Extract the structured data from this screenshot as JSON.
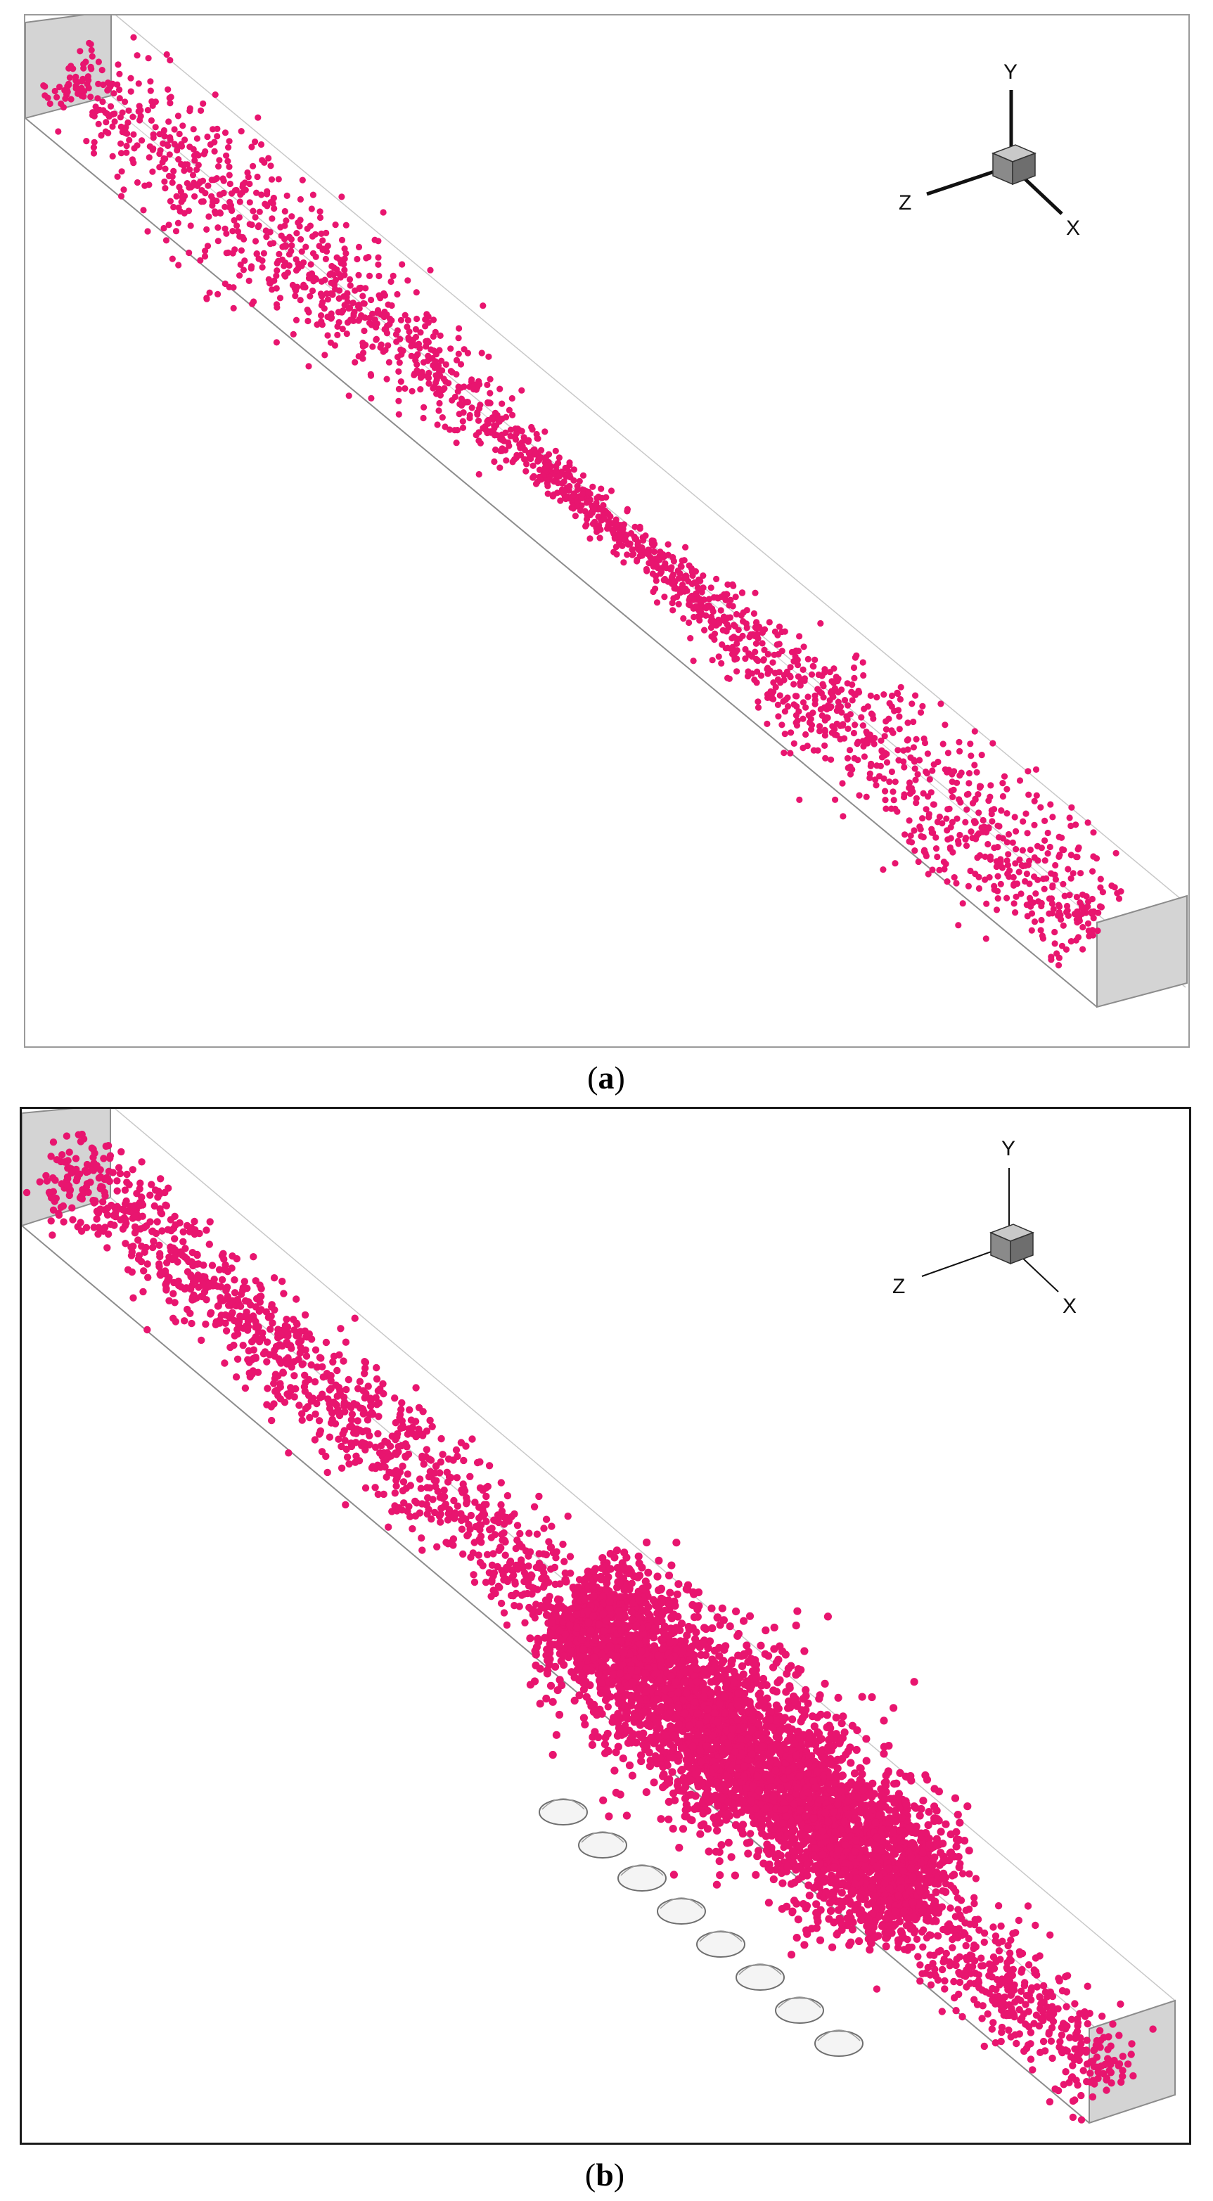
{
  "panels": [
    {
      "id": "a",
      "caption": "a",
      "triad": {
        "y": "Y",
        "z": "Z",
        "x": "X"
      },
      "particle_color": "#e8156f",
      "flow_channel": "empty channel",
      "obstacles": 0
    },
    {
      "id": "b",
      "caption": "b",
      "triad": {
        "y": "Y",
        "z": "Z",
        "x": "X"
      },
      "particle_color": "#e8156f",
      "flow_channel": "channel with row of hemispherical bumps",
      "obstacles": 8
    }
  ],
  "colors": {
    "particle": "#e8156f",
    "end_face": "#d4d4d4",
    "channel_edge": "#8c8c8c",
    "triad_cube_top": "#c9c9c9",
    "triad_cube_side": "#7a7a7a"
  }
}
